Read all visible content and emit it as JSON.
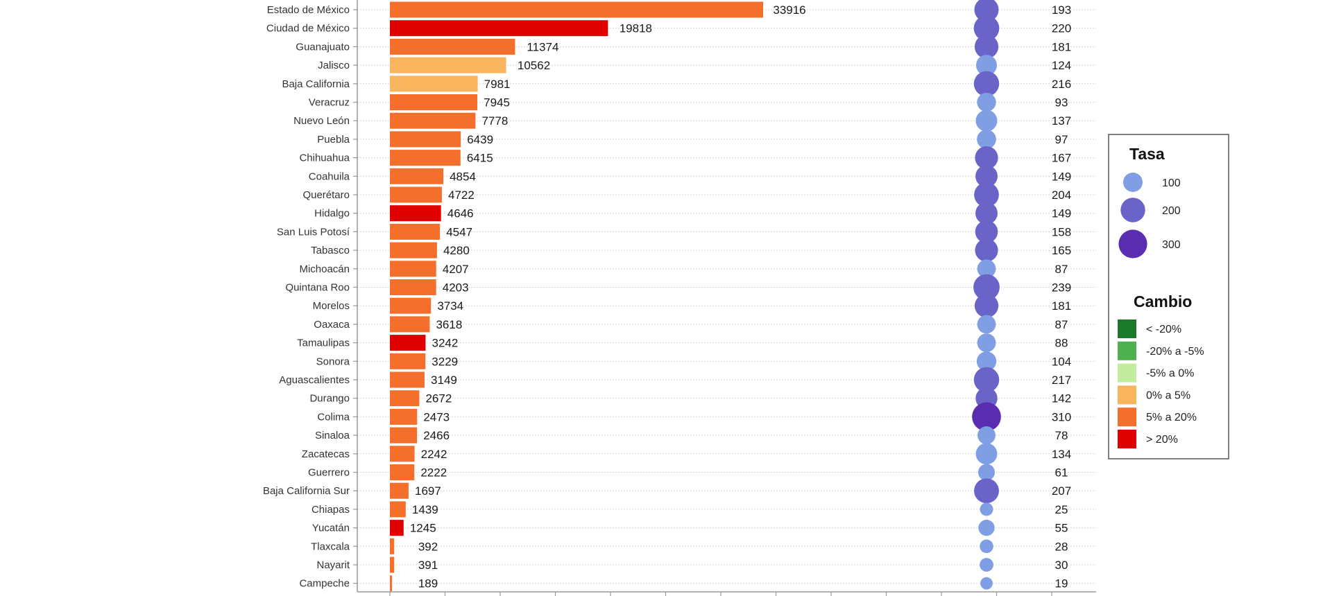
{
  "chart_data": {
    "type": "bar",
    "categories": [
      "Estado de México",
      "Ciudad de México",
      "Guanajuato",
      "Jalisco",
      "Baja California",
      "Veracruz",
      "Nuevo León",
      "Puebla",
      "Chihuahua",
      "Coahuila",
      "Querétaro",
      "Hidalgo",
      "San Luis Potosí",
      "Tabasco",
      "Michoacán",
      "Quintana Roo",
      "Morelos",
      "Oaxaca",
      "Tamaulipas",
      "Sonora",
      "Aguascalientes",
      "Durango",
      "Colima",
      "Sinaloa",
      "Zacatecas",
      "Guerrero",
      "Baja California Sur",
      "Chiapas",
      "Yucatán",
      "Tlaxcala",
      "Nayarit",
      "Campeche"
    ],
    "values": [
      33916,
      19818,
      11374,
      10562,
      7981,
      7945,
      7778,
      6439,
      6415,
      4854,
      4722,
      4646,
      4547,
      4280,
      4207,
      4203,
      3734,
      3618,
      3242,
      3229,
      3149,
      2672,
      2473,
      2466,
      2242,
      2222,
      1697,
      1439,
      1245,
      392,
      391,
      189
    ],
    "value_labels": [
      "33916",
      "19818",
      "11374",
      "10562",
      "7981",
      "7945",
      "7778",
      "6439",
      "6415",
      "4854",
      "4722",
      "4646",
      "4547",
      "4280",
      "4207",
      "4203",
      "3734",
      "3618",
      "3242",
      "3229",
      "3149",
      "2672",
      "2473",
      "2466",
      "2242",
      "2222",
      "1697",
      "1439",
      "1245",
      "392",
      "391",
      "189"
    ],
    "tasa": [
      193,
      220,
      181,
      124,
      216,
      93,
      137,
      97,
      167,
      149,
      204,
      149,
      158,
      165,
      87,
      239,
      181,
      87,
      88,
      104,
      217,
      142,
      310,
      78,
      134,
      61,
      207,
      25,
      55,
      28,
      30,
      19
    ],
    "tasa_labels": [
      "193",
      "220",
      "181",
      "124",
      "216",
      "93",
      "137",
      "97",
      "167",
      "149",
      "204",
      "149",
      "158",
      "165",
      "87",
      "239",
      "181",
      "87",
      "88",
      "104",
      "217",
      "142",
      "310",
      "78",
      "134",
      "61",
      "207",
      "25",
      "55",
      "28",
      "30",
      "19"
    ],
    "cambio": [
      "5% a 20%",
      "> 20%",
      "5% a 20%",
      "0% a 5%",
      "0% a 5%",
      "5% a 20%",
      "5% a 20%",
      "5% a 20%",
      "5% a 20%",
      "5% a 20%",
      "5% a 20%",
      "> 20%",
      "5% a 20%",
      "5% a 20%",
      "5% a 20%",
      "5% a 20%",
      "5% a 20%",
      "5% a 20%",
      "> 20%",
      "5% a 20%",
      "5% a 20%",
      "5% a 20%",
      "5% a 20%",
      "5% a 20%",
      "5% a 20%",
      "5% a 20%",
      "5% a 20%",
      "5% a 20%",
      "> 20%",
      "5% a 20%",
      "5% a 20%",
      "5% a 20%"
    ],
    "xlim": [
      0,
      35000
    ],
    "legend_placement": "right",
    "legends": {
      "tasa": {
        "title": "Tasa",
        "items": [
          {
            "label": "100",
            "value": 100
          },
          {
            "label": "200",
            "value": 200
          },
          {
            "label": "300",
            "value": 300
          }
        ]
      },
      "cambio": {
        "title": "Cambio",
        "items": [
          {
            "label": "< -20%",
            "color": "#1a7a2a"
          },
          {
            "label": "-20% a -5%",
            "color": "#4fb04f"
          },
          {
            "label": "-5% a 0%",
            "color": "#c4ec9e"
          },
          {
            "label": "0% a 5%",
            "color": "#f9b45e"
          },
          {
            "label": "5% a 20%",
            "color": "#f46f2c"
          },
          {
            "label": "> 20%",
            "color": "#e00000"
          }
        ]
      }
    },
    "colors": {
      "tasa_low": "#7f9ee4",
      "tasa_mid": "#6a64c8",
      "tasa_high": "#5a2db0",
      "grid": "#d8d8d8",
      "axis": "#999999"
    }
  }
}
